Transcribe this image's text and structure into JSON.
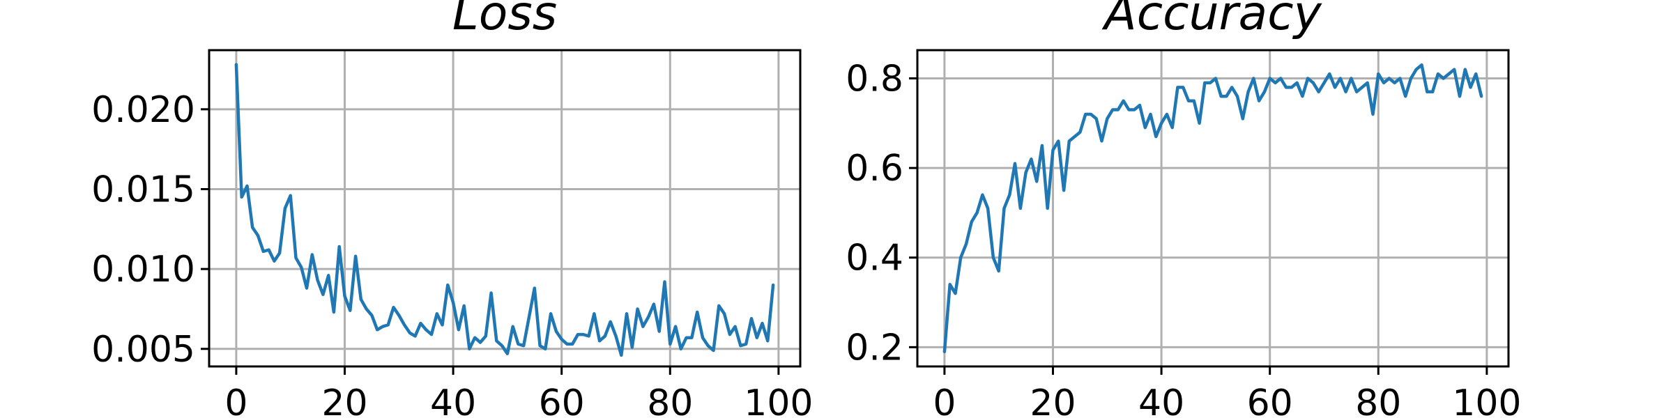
{
  "chart_data": [
    {
      "id": "loss",
      "type": "line",
      "title": "Loss",
      "xlabel": "",
      "ylabel": "",
      "xlim": [
        -5,
        104
      ],
      "ylim": [
        0.0039,
        0.0237
      ],
      "xticks": [
        0,
        20,
        40,
        60,
        80,
        100
      ],
      "xtick_labels": [
        "0",
        "20",
        "40",
        "60",
        "80",
        "100"
      ],
      "yticks": [
        0.005,
        0.01,
        0.015,
        0.02
      ],
      "ytick_labels": [
        "0.005",
        "0.010",
        "0.015",
        "0.020"
      ],
      "grid": true,
      "color": "#1f77b4",
      "series": [
        {
          "x": [
            0,
            1,
            2,
            3,
            4,
            5,
            6,
            7,
            8,
            9,
            10,
            11,
            12,
            13,
            14,
            15,
            16,
            17,
            18,
            19,
            20,
            21,
            22,
            23,
            24,
            25,
            26,
            27,
            28,
            29,
            30,
            31,
            32,
            33,
            34,
            35,
            36,
            37,
            38,
            39,
            40,
            41,
            42,
            43,
            44,
            45,
            46,
            47,
            48,
            49,
            50,
            51,
            52,
            53,
            54,
            55,
            56,
            57,
            58,
            59,
            60,
            61,
            62,
            63,
            64,
            65,
            66,
            67,
            68,
            69,
            70,
            71,
            72,
            73,
            74,
            75,
            76,
            77,
            78,
            79,
            80,
            81,
            82,
            83,
            84,
            85,
            86,
            87,
            88,
            89,
            90,
            91,
            92,
            93,
            94,
            95,
            96,
            97,
            98,
            99
          ],
          "values": [
            0.0228,
            0.0145,
            0.0152,
            0.0126,
            0.0121,
            0.0111,
            0.0112,
            0.0105,
            0.011,
            0.0138,
            0.0146,
            0.0107,
            0.0101,
            0.0088,
            0.0109,
            0.0093,
            0.0084,
            0.0096,
            0.0073,
            0.0114,
            0.0083,
            0.0074,
            0.0108,
            0.0081,
            0.0075,
            0.0071,
            0.0062,
            0.0064,
            0.0065,
            0.0076,
            0.0071,
            0.0065,
            0.006,
            0.0058,
            0.0066,
            0.0062,
            0.0059,
            0.0072,
            0.0065,
            0.009,
            0.0079,
            0.0062,
            0.0077,
            0.005,
            0.0057,
            0.0054,
            0.0058,
            0.0085,
            0.0055,
            0.0052,
            0.0047,
            0.0064,
            0.0053,
            0.0052,
            0.007,
            0.0088,
            0.0052,
            0.005,
            0.0072,
            0.0061,
            0.0056,
            0.0053,
            0.0053,
            0.0059,
            0.0059,
            0.0058,
            0.0072,
            0.0055,
            0.0058,
            0.0067,
            0.0058,
            0.0046,
            0.0072,
            0.0051,
            0.0075,
            0.0064,
            0.007,
            0.0078,
            0.0061,
            0.0092,
            0.0053,
            0.0064,
            0.005,
            0.0057,
            0.0057,
            0.0073,
            0.0057,
            0.0052,
            0.0049,
            0.0077,
            0.0072,
            0.0059,
            0.0064,
            0.0052,
            0.0053,
            0.0069,
            0.0057,
            0.0066,
            0.0055,
            0.009
          ]
        }
      ]
    },
    {
      "id": "accuracy",
      "type": "line",
      "title": "Accuracy",
      "xlabel": "",
      "ylabel": "",
      "xlim": [
        -5,
        104
      ],
      "ylim": [
        0.157,
        0.863
      ],
      "xticks": [
        0,
        20,
        40,
        60,
        80,
        100
      ],
      "xtick_labels": [
        "0",
        "20",
        "40",
        "60",
        "80",
        "100"
      ],
      "yticks": [
        0.2,
        0.4,
        0.6,
        0.8
      ],
      "ytick_labels": [
        "0.2",
        "0.4",
        "0.6",
        "0.8"
      ],
      "grid": true,
      "color": "#1f77b4",
      "series": [
        {
          "x": [
            0,
            1,
            2,
            3,
            4,
            5,
            6,
            7,
            8,
            9,
            10,
            11,
            12,
            13,
            14,
            15,
            16,
            17,
            18,
            19,
            20,
            21,
            22,
            23,
            24,
            25,
            26,
            27,
            28,
            29,
            30,
            31,
            32,
            33,
            34,
            35,
            36,
            37,
            38,
            39,
            40,
            41,
            42,
            43,
            44,
            45,
            46,
            47,
            48,
            49,
            50,
            51,
            52,
            53,
            54,
            55,
            56,
            57,
            58,
            59,
            60,
            61,
            62,
            63,
            64,
            65,
            66,
            67,
            68,
            69,
            70,
            71,
            72,
            73,
            74,
            75,
            76,
            77,
            78,
            79,
            80,
            81,
            82,
            83,
            84,
            85,
            86,
            87,
            88,
            89,
            90,
            91,
            92,
            93,
            94,
            95,
            96,
            97,
            98,
            99
          ],
          "values": [
            0.19,
            0.34,
            0.32,
            0.4,
            0.43,
            0.48,
            0.5,
            0.54,
            0.51,
            0.4,
            0.37,
            0.51,
            0.54,
            0.61,
            0.51,
            0.59,
            0.62,
            0.57,
            0.65,
            0.51,
            0.64,
            0.66,
            0.55,
            0.66,
            0.67,
            0.68,
            0.72,
            0.72,
            0.71,
            0.66,
            0.71,
            0.73,
            0.73,
            0.75,
            0.73,
            0.73,
            0.74,
            0.69,
            0.72,
            0.67,
            0.7,
            0.72,
            0.69,
            0.78,
            0.78,
            0.75,
            0.75,
            0.7,
            0.79,
            0.79,
            0.8,
            0.76,
            0.76,
            0.78,
            0.76,
            0.71,
            0.77,
            0.8,
            0.75,
            0.77,
            0.8,
            0.79,
            0.8,
            0.78,
            0.78,
            0.79,
            0.76,
            0.8,
            0.79,
            0.77,
            0.79,
            0.81,
            0.78,
            0.8,
            0.77,
            0.8,
            0.77,
            0.78,
            0.79,
            0.72,
            0.81,
            0.79,
            0.8,
            0.79,
            0.8,
            0.76,
            0.8,
            0.82,
            0.83,
            0.77,
            0.77,
            0.81,
            0.8,
            0.81,
            0.82,
            0.76,
            0.82,
            0.78,
            0.81,
            0.76
          ]
        }
      ]
    }
  ]
}
